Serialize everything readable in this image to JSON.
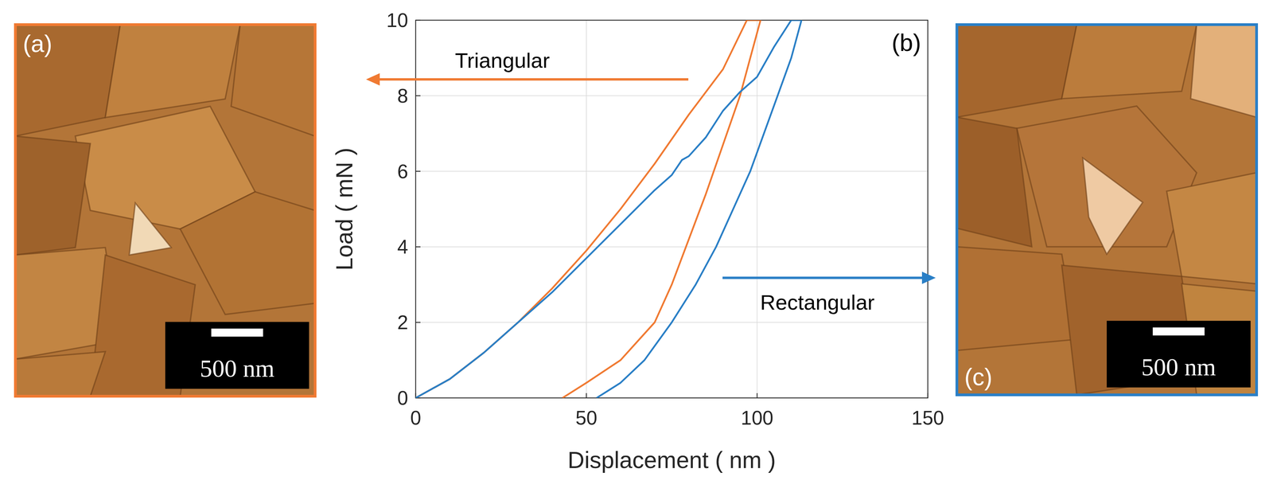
{
  "chart_data": {
    "type": "line",
    "panel_label": "(b)",
    "x_label": "Displacement ( nm )",
    "y_label": "Load ( mN )",
    "xlim": [
      0,
      150
    ],
    "xticks": [
      0,
      50,
      100,
      150
    ],
    "ylim": [
      0,
      10
    ],
    "yticks": [
      0,
      2,
      4,
      6,
      8,
      10
    ],
    "grid": true,
    "series": [
      {
        "name": "Triangular",
        "color": "#f07a32",
        "x": [
          0,
          10,
          20,
          30,
          40,
          50,
          60,
          70,
          80,
          90,
          97,
          101,
          98,
          95,
          90,
          85,
          80,
          75,
          70,
          60,
          50,
          43
        ],
        "values": [
          0,
          0.5,
          1.2,
          2.0,
          2.9,
          3.9,
          5.0,
          6.2,
          7.5,
          8.7,
          10,
          10,
          9.0,
          8.0,
          6.7,
          5.4,
          4.2,
          3.0,
          2.0,
          1.0,
          0.4,
          0
        ]
      },
      {
        "name": "Rectangular",
        "color": "#2a7fc6",
        "x": [
          0,
          10,
          20,
          30,
          40,
          50,
          60,
          70,
          75,
          78,
          80,
          85,
          90,
          95,
          100,
          105,
          110,
          113,
          110,
          106,
          102,
          98,
          93,
          88,
          82,
          75,
          67,
          60,
          53
        ],
        "values": [
          0,
          0.5,
          1.2,
          2.0,
          2.8,
          3.7,
          4.6,
          5.5,
          5.9,
          6.3,
          6.4,
          6.9,
          7.6,
          8.1,
          8.5,
          9.3,
          10,
          10,
          9.0,
          8.0,
          7.0,
          6.0,
          5.0,
          4.0,
          3.0,
          2.0,
          1.0,
          0.4,
          0
        ]
      }
    ]
  },
  "images": [
    {
      "label": "(a)",
      "scale_bar": "500 nm"
    },
    {
      "label": "(c)",
      "scale_bar": "500 nm"
    }
  ]
}
